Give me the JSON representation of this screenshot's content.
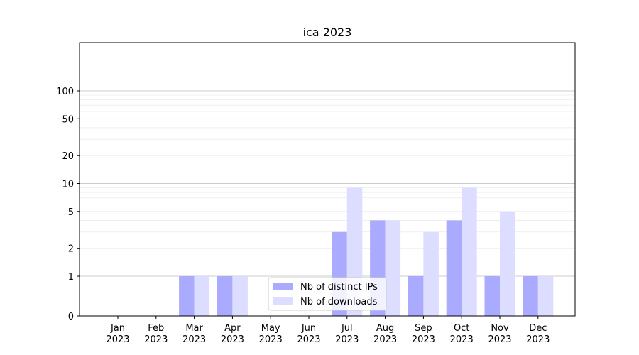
{
  "chart_data": {
    "type": "bar",
    "title": "ica 2023",
    "xlabel": "",
    "ylabel": "",
    "y_scale": "symlog",
    "ylim": [
      0,
      120
    ],
    "y_ticks": [
      0,
      1,
      2,
      5,
      10,
      20,
      50,
      100
    ],
    "grid": true,
    "legend_position": "lower-center",
    "categories": [
      {
        "month": "Jan",
        "year": "2023"
      },
      {
        "month": "Feb",
        "year": "2023"
      },
      {
        "month": "Mar",
        "year": "2023"
      },
      {
        "month": "Apr",
        "year": "2023"
      },
      {
        "month": "May",
        "year": "2023"
      },
      {
        "month": "Jun",
        "year": "2023"
      },
      {
        "month": "Jul",
        "year": "2023"
      },
      {
        "month": "Aug",
        "year": "2023"
      },
      {
        "month": "Sep",
        "year": "2023"
      },
      {
        "month": "Oct",
        "year": "2023"
      },
      {
        "month": "Nov",
        "year": "2023"
      },
      {
        "month": "Dec",
        "year": "2023"
      }
    ],
    "series": [
      {
        "name": "Nb of distinct IPs",
        "color": "#aaaaff",
        "values": [
          0,
          0,
          1,
          1,
          0,
          0,
          3,
          4,
          1,
          4,
          1,
          1
        ]
      },
      {
        "name": "Nb of downloads",
        "color": "#ddddff",
        "values": [
          0,
          0,
          1,
          1,
          0,
          0,
          9,
          4,
          3,
          9,
          5,
          1
        ]
      }
    ]
  }
}
